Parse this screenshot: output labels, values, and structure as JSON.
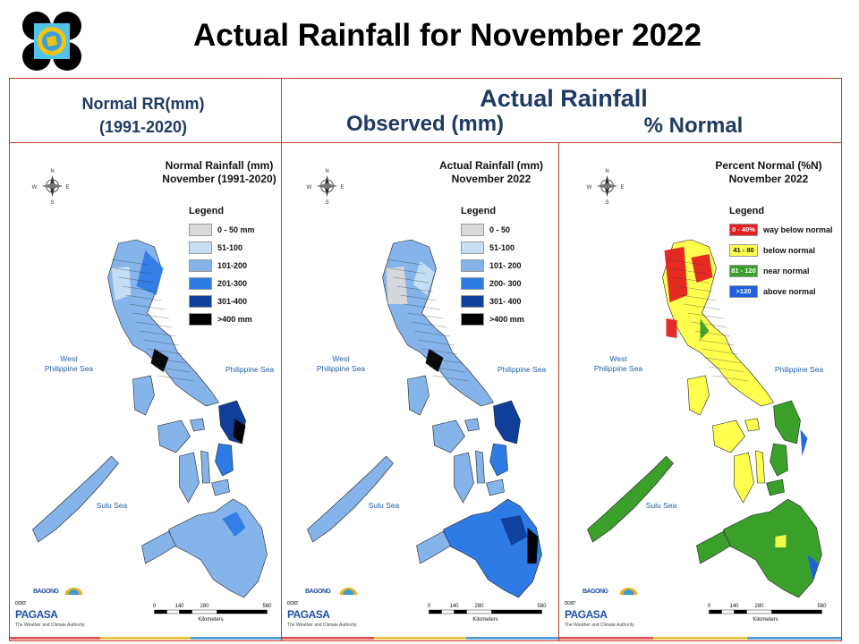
{
  "header": {
    "title": "Actual Rainfall for November 2022",
    "left_heading": "Normal RR(mm)",
    "left_period": "(1991-2020)",
    "actual_heading": "Actual Rainfall",
    "observed_heading": "Observed (mm)",
    "percent_heading": "% Normal"
  },
  "panels": [
    {
      "title_line1": "Normal Rainfall (mm)",
      "title_line2": "November (1991-2020)",
      "legend_title": "Legend",
      "legend": [
        {
          "label": "0 - 50 mm",
          "color": "#d9d9d9",
          "swatch_text": ""
        },
        {
          "label": "51-100",
          "color": "#c6dff5",
          "swatch_text": ""
        },
        {
          "label": "101-200",
          "color": "#84b4ea",
          "swatch_text": ""
        },
        {
          "label": "201-300",
          "color": "#2f7be6",
          "swatch_text": ""
        },
        {
          "label": "301-400",
          "color": "#0f3f9a",
          "swatch_text": ""
        },
        {
          "label": ">400 mm",
          "color": "#000000",
          "swatch_text": ""
        }
      ],
      "seas": {
        "west": "West\nPhilippine Sea",
        "east": "Philippine Sea",
        "south": "Sulu Sea"
      },
      "scale": {
        "ticks": [
          "0",
          "140",
          "280",
          "560"
        ],
        "unit": "Kilometers"
      }
    },
    {
      "title_line1": "Actual Rainfall (mm)",
      "title_line2": "November 2022",
      "legend_title": "Legend",
      "legend": [
        {
          "label": "0 - 50",
          "color": "#d9d9d9",
          "swatch_text": ""
        },
        {
          "label": "51-100",
          "color": "#c6dff5",
          "swatch_text": ""
        },
        {
          "label": "101- 200",
          "color": "#84b4ea",
          "swatch_text": ""
        },
        {
          "label": "200- 300",
          "color": "#2f7be6",
          "swatch_text": ""
        },
        {
          "label": "301- 400",
          "color": "#0f3f9a",
          "swatch_text": ""
        },
        {
          "label": ">400 mm",
          "color": "#000000",
          "swatch_text": ""
        }
      ],
      "seas": {
        "west": "West\nPhilippine Sea",
        "east": "Philippine Sea",
        "south": "Sulu Sea"
      },
      "scale": {
        "ticks": [
          "0",
          "140",
          "280",
          "560"
        ],
        "unit": "Kilometers"
      }
    },
    {
      "title_line1": "Percent Normal (%N)",
      "title_line2": "November 2022",
      "legend_title": "Legend",
      "legend": [
        {
          "label": "way below normal",
          "color": "#e32020",
          "swatch_text": "0 - 40%"
        },
        {
          "label": "below normal",
          "color": "#ffff4d",
          "swatch_text": "41 - 80"
        },
        {
          "label": "near normal",
          "color": "#3aa02a",
          "swatch_text": "81 - 120"
        },
        {
          "label": "above normal",
          "color": "#1f5fe0",
          "swatch_text": ">120"
        }
      ],
      "seas": {
        "west": "West\nPhilippine Sea",
        "east": "Philippine Sea",
        "south": "Sulu Sea"
      },
      "scale": {
        "ticks": [
          "0",
          "140",
          "280",
          "560"
        ],
        "unit": "Kilometers"
      }
    }
  ],
  "branding": {
    "small": "DOST",
    "name": "PAGASA",
    "tag": "BAGONG",
    "sub": "The Weather and Climate Authority"
  },
  "compass": {
    "n": "N",
    "s": "S",
    "e": "E",
    "w": "W"
  }
}
